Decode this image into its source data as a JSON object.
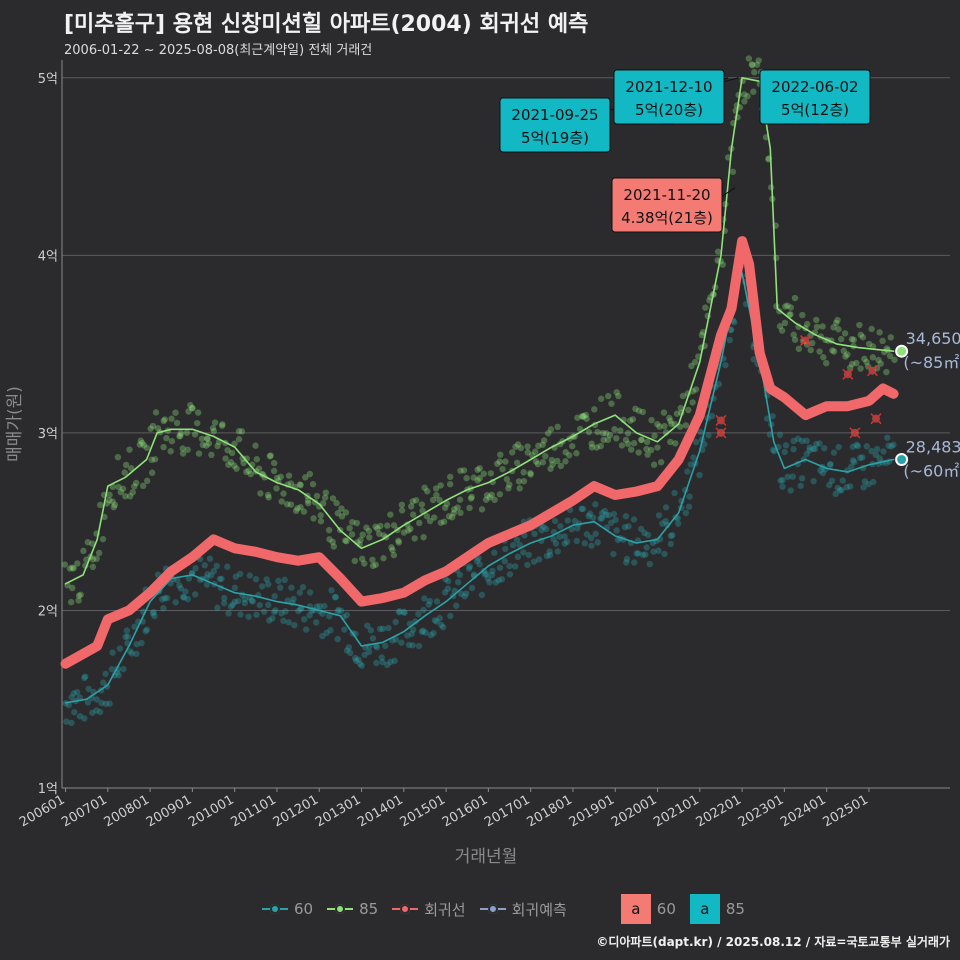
{
  "header": {
    "title": "[미추홀구] 용현 신창미션힐 아파트(2004) 회귀선 예측",
    "subtitle": "2006-01-22 ~ 2025-08-08(최근계약일) 전체 거래건"
  },
  "footer": {
    "credit": "©디아파트(dapt.kr) / 2025.08.12 / 자료=국토교통부 실거래가"
  },
  "legend": {
    "items": [
      {
        "label": "60",
        "color": "#2aa3a8"
      },
      {
        "label": "85",
        "color": "#8fe27a"
      },
      {
        "label": "회귀선",
        "color": "#f0686a"
      },
      {
        "label": "회귀예측",
        "color": "#8ca0c8"
      }
    ],
    "boxes": [
      {
        "letter": "a",
        "label": "60",
        "color": "#f47a74"
      },
      {
        "letter": "a",
        "label": "85",
        "color": "#12b9c4"
      }
    ]
  },
  "chart_data": {
    "type": "line",
    "xlabel": "거래년월",
    "ylabel": "매매가(원)",
    "x_range": [
      "2005-12",
      "2026-12"
    ],
    "ylim": [
      1.0,
      5.1
    ],
    "y_unit": "억",
    "y_ticks": [
      1,
      2,
      3,
      4,
      5
    ],
    "y_tick_labels": [
      "1억",
      "2억",
      "3억",
      "4억",
      "5억"
    ],
    "x_tick_labels": [
      "200601",
      "200701",
      "200801",
      "200901",
      "201001",
      "201101",
      "201201",
      "201301",
      "201401",
      "201501",
      "201601",
      "201701",
      "201801",
      "201901",
      "202001",
      "202101",
      "202201",
      "202301",
      "202401",
      "202501"
    ],
    "grid": "horizontal",
    "series": [
      {
        "name": "60",
        "color": "#2aa3a8",
        "points": [
          [
            "2006-01",
            1.48
          ],
          [
            "2006-07",
            1.5
          ],
          [
            "2007-01",
            1.58
          ],
          [
            "2007-07",
            1.8
          ],
          [
            "2008-01",
            2.05
          ],
          [
            "2008-07",
            2.18
          ],
          [
            "2009-01",
            2.2
          ],
          [
            "2009-07",
            2.15
          ],
          [
            "2010-01",
            2.1
          ],
          [
            "2010-07",
            2.08
          ],
          [
            "2011-01",
            2.05
          ],
          [
            "2011-07",
            2.03
          ],
          [
            "2012-01",
            2.0
          ],
          [
            "2012-07",
            1.97
          ],
          [
            "2013-01",
            1.8
          ],
          [
            "2013-07",
            1.82
          ],
          [
            "2014-01",
            1.88
          ],
          [
            "2014-07",
            1.97
          ],
          [
            "2015-01",
            2.05
          ],
          [
            "2015-07",
            2.15
          ],
          [
            "2016-01",
            2.25
          ],
          [
            "2016-07",
            2.32
          ],
          [
            "2017-01",
            2.38
          ],
          [
            "2017-07",
            2.42
          ],
          [
            "2018-01",
            2.48
          ],
          [
            "2018-07",
            2.5
          ],
          [
            "2019-01",
            2.42
          ],
          [
            "2019-07",
            2.38
          ],
          [
            "2020-01",
            2.4
          ],
          [
            "2020-07",
            2.55
          ],
          [
            "2021-01",
            2.9
          ],
          [
            "2021-07",
            3.4
          ],
          [
            "2021-10",
            3.7
          ],
          [
            "2022-01",
            3.9
          ],
          [
            "2022-04",
            3.6
          ],
          [
            "2022-07",
            3.3
          ],
          [
            "2022-10",
            2.95
          ],
          [
            "2023-01",
            2.8
          ],
          [
            "2023-07",
            2.85
          ],
          [
            "2024-01",
            2.8
          ],
          [
            "2024-07",
            2.78
          ],
          [
            "2025-01",
            2.82
          ],
          [
            "2025-08",
            2.85
          ]
        ]
      },
      {
        "name": "85",
        "color": "#8fe27a",
        "points": [
          [
            "2006-01",
            2.15
          ],
          [
            "2006-06",
            2.2
          ],
          [
            "2006-10",
            2.4
          ],
          [
            "2007-01",
            2.7
          ],
          [
            "2007-06",
            2.75
          ],
          [
            "2007-12",
            2.85
          ],
          [
            "2008-03",
            3.0
          ],
          [
            "2008-07",
            3.02
          ],
          [
            "2009-01",
            3.02
          ],
          [
            "2009-07",
            2.98
          ],
          [
            "2010-01",
            2.92
          ],
          [
            "2010-07",
            2.78
          ],
          [
            "2011-01",
            2.72
          ],
          [
            "2011-07",
            2.68
          ],
          [
            "2012-01",
            2.6
          ],
          [
            "2012-07",
            2.45
          ],
          [
            "2013-01",
            2.35
          ],
          [
            "2013-07",
            2.4
          ],
          [
            "2014-01",
            2.48
          ],
          [
            "2014-07",
            2.55
          ],
          [
            "2015-01",
            2.62
          ],
          [
            "2015-07",
            2.68
          ],
          [
            "2016-01",
            2.72
          ],
          [
            "2016-07",
            2.78
          ],
          [
            "2017-01",
            2.85
          ],
          [
            "2017-07",
            2.92
          ],
          [
            "2018-01",
            2.98
          ],
          [
            "2018-07",
            3.05
          ],
          [
            "2019-01",
            3.1
          ],
          [
            "2019-07",
            3.0
          ],
          [
            "2020-01",
            2.95
          ],
          [
            "2020-07",
            3.05
          ],
          [
            "2021-01",
            3.4
          ],
          [
            "2021-07",
            4.0
          ],
          [
            "2021-10",
            4.6
          ],
          [
            "2022-01",
            5.0
          ],
          [
            "2022-06",
            4.98
          ],
          [
            "2022-09",
            4.6
          ],
          [
            "2022-11",
            3.7
          ],
          [
            "2023-04",
            3.62
          ],
          [
            "2023-10",
            3.55
          ],
          [
            "2024-04",
            3.5
          ],
          [
            "2024-10",
            3.48
          ],
          [
            "2025-03",
            3.47
          ],
          [
            "2025-08",
            3.46
          ]
        ]
      },
      {
        "name": "회귀선",
        "color": "#f0686a",
        "points": [
          [
            "2006-01",
            1.7
          ],
          [
            "2006-10",
            1.8
          ],
          [
            "2007-01",
            1.95
          ],
          [
            "2007-07",
            2.0
          ],
          [
            "2008-01",
            2.1
          ],
          [
            "2008-07",
            2.22
          ],
          [
            "2009-01",
            2.3
          ],
          [
            "2009-07",
            2.4
          ],
          [
            "2010-01",
            2.35
          ],
          [
            "2010-07",
            2.33
          ],
          [
            "2011-01",
            2.3
          ],
          [
            "2011-07",
            2.28
          ],
          [
            "2012-01",
            2.3
          ],
          [
            "2012-07",
            2.18
          ],
          [
            "2013-01",
            2.05
          ],
          [
            "2013-07",
            2.07
          ],
          [
            "2014-01",
            2.1
          ],
          [
            "2014-07",
            2.17
          ],
          [
            "2015-01",
            2.22
          ],
          [
            "2015-07",
            2.3
          ],
          [
            "2016-01",
            2.38
          ],
          [
            "2016-07",
            2.43
          ],
          [
            "2017-01",
            2.48
          ],
          [
            "2017-07",
            2.55
          ],
          [
            "2018-01",
            2.62
          ],
          [
            "2018-07",
            2.7
          ],
          [
            "2019-01",
            2.65
          ],
          [
            "2019-07",
            2.67
          ],
          [
            "2020-01",
            2.7
          ],
          [
            "2020-07",
            2.85
          ],
          [
            "2021-01",
            3.1
          ],
          [
            "2021-07",
            3.55
          ],
          [
            "2021-10",
            3.7
          ],
          [
            "2022-01",
            4.08
          ],
          [
            "2022-03",
            3.95
          ],
          [
            "2022-06",
            3.45
          ],
          [
            "2022-09",
            3.25
          ],
          [
            "2023-01",
            3.2
          ],
          [
            "2023-07",
            3.1
          ],
          [
            "2024-01",
            3.15
          ],
          [
            "2024-07",
            3.15
          ],
          [
            "2025-01",
            3.18
          ],
          [
            "2025-05",
            3.25
          ],
          [
            "2025-08",
            3.22
          ]
        ]
      }
    ],
    "outliers": [
      {
        "series": "회귀예측",
        "points": [
          [
            "2023-07",
            3.52
          ],
          [
            "2024-07",
            3.33
          ],
          [
            "2024-09",
            3.0
          ],
          [
            "2025-02",
            3.35
          ],
          [
            "2025-03",
            3.08
          ],
          [
            "2021-07",
            3.0
          ],
          [
            "2021-07",
            3.07
          ]
        ]
      }
    ],
    "end_labels": [
      {
        "value": "34,650",
        "area": "(~85㎡)",
        "series": "85",
        "x": "2025-08",
        "y": 3.46
      },
      {
        "value": "28,483",
        "area": "(~60㎡)",
        "series": "60",
        "x": "2025-08",
        "y": 2.85
      }
    ],
    "annotations": [
      {
        "date": "2021-09-25",
        "text": "5억(19층)",
        "x": "2021-09",
        "y": 5.0,
        "color": "#12b9c4"
      },
      {
        "date": "2021-12-10",
        "text": "5억(20층)",
        "x": "2021-12",
        "y": 5.0,
        "color": "#12b9c4"
      },
      {
        "date": "2022-06-02",
        "text": "5억(12층)",
        "x": "2022-06",
        "y": 5.0,
        "color": "#12b9c4"
      },
      {
        "date": "2021-11-20",
        "text": "4.38억(21층)",
        "x": "2021-11",
        "y": 4.38,
        "color": "#f47a74"
      }
    ]
  }
}
